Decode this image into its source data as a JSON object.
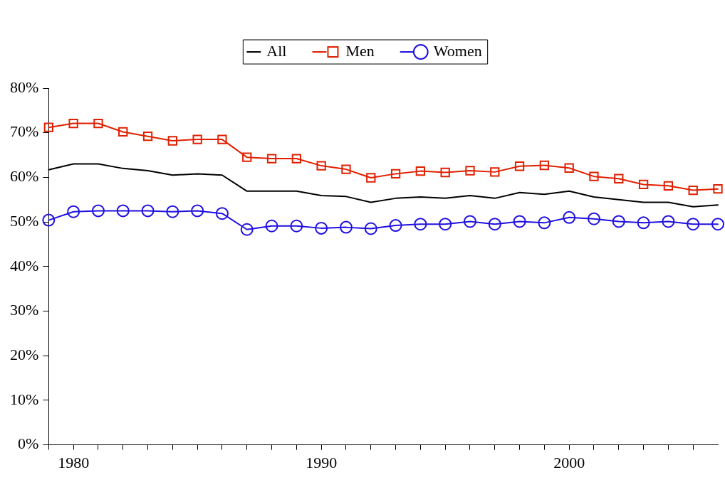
{
  "chart_data": {
    "type": "line",
    "x": [
      1979,
      1980,
      1981,
      1982,
      1983,
      1984,
      1985,
      1986,
      1987,
      1988,
      1989,
      1990,
      1991,
      1992,
      1993,
      1994,
      1995,
      1996,
      1997,
      1998,
      1999,
      2000,
      2001,
      2002,
      2003,
      2004,
      2005,
      2006
    ],
    "series": [
      {
        "name": "All",
        "color": "#000000",
        "marker": "none",
        "values": [
          61.7,
          63.0,
          63.0,
          62.0,
          61.5,
          60.5,
          60.8,
          60.5,
          56.9,
          56.9,
          56.9,
          55.9,
          55.7,
          54.4,
          55.3,
          55.6,
          55.3,
          55.9,
          55.3,
          56.6,
          56.2,
          56.9,
          55.6,
          55.0,
          54.4,
          54.4,
          53.4,
          53.8
        ]
      },
      {
        "name": "Men",
        "color": "#e02000",
        "marker": "square",
        "values": [
          71.2,
          72.1,
          72.1,
          70.2,
          69.2,
          68.2,
          68.5,
          68.5,
          64.5,
          64.2,
          64.2,
          62.6,
          61.8,
          59.9,
          60.8,
          61.4,
          61.1,
          61.5,
          61.2,
          62.5,
          62.7,
          62.1,
          60.2,
          59.7,
          58.4,
          58.1,
          57.1,
          57.4
        ]
      },
      {
        "name": "Women",
        "color": "#2010e0",
        "marker": "circle",
        "values": [
          50.4,
          52.3,
          52.5,
          52.5,
          52.5,
          52.3,
          52.5,
          51.9,
          48.3,
          49.1,
          49.1,
          48.6,
          48.8,
          48.5,
          49.2,
          49.5,
          49.5,
          50.1,
          49.5,
          50.1,
          49.8,
          51.0,
          50.7,
          50.1,
          49.8,
          50.1,
          49.5,
          49.5
        ]
      }
    ],
    "xlim": [
      1979,
      2006
    ],
    "xticks": [
      {
        "value": 1979,
        "label": null
      },
      {
        "value": 1980,
        "label": "1980"
      },
      {
        "value": 1981,
        "label": null
      },
      {
        "value": 1982,
        "label": null
      },
      {
        "value": 1983,
        "label": null
      },
      {
        "value": 1984,
        "label": null
      },
      {
        "value": 1985,
        "label": null
      },
      {
        "value": 1986,
        "label": null
      },
      {
        "value": 1987,
        "label": null
      },
      {
        "value": 1988,
        "label": null
      },
      {
        "value": 1989,
        "label": null
      },
      {
        "value": 1990,
        "label": "1990"
      },
      {
        "value": 1991,
        "label": null
      },
      {
        "value": 1992,
        "label": null
      },
      {
        "value": 1993,
        "label": null
      },
      {
        "value": 1994,
        "label": null
      },
      {
        "value": 1995,
        "label": null
      },
      {
        "value": 1996,
        "label": null
      },
      {
        "value": 1997,
        "label": null
      },
      {
        "value": 1998,
        "label": null
      },
      {
        "value": 1999,
        "label": null
      },
      {
        "value": 2000,
        "label": "2000"
      },
      {
        "value": 2001,
        "label": null
      },
      {
        "value": 2002,
        "label": null
      },
      {
        "value": 2003,
        "label": null
      },
      {
        "value": 2004,
        "label": null
      },
      {
        "value": 2005,
        "label": null
      }
    ],
    "ylim": [
      0,
      80
    ],
    "yticks": [
      {
        "value": 0,
        "label": "0%"
      },
      {
        "value": 10,
        "label": "10%"
      },
      {
        "value": 20,
        "label": "20%"
      },
      {
        "value": 30,
        "label": "30%"
      },
      {
        "value": 40,
        "label": "40%"
      },
      {
        "value": 50,
        "label": "50%"
      },
      {
        "value": 60,
        "label": "60%"
      },
      {
        "value": 70,
        "label": "70%"
      },
      {
        "value": 80,
        "label": "80%"
      }
    ],
    "grid": false,
    "legend": "top",
    "line_style": "solid"
  }
}
